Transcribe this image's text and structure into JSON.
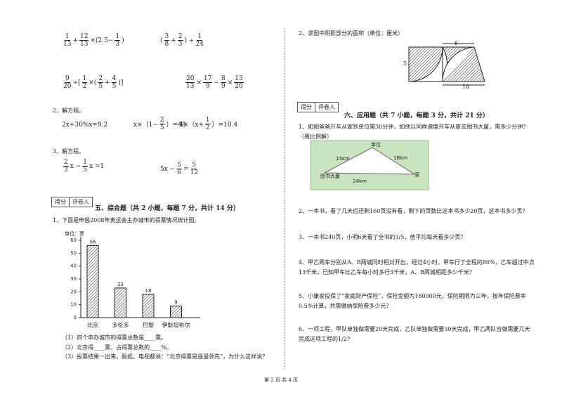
{
  "left": {
    "expressions": [
      [
        {
          "num": "1",
          "den": "13"
        },
        "+",
        {
          "num": "12",
          "den": "13"
        },
        "×(2.5−",
        {
          "num": "1",
          "den": "3"
        },
        ")"
      ],
      [
        "(",
        {
          "num": "3",
          "den": "8"
        },
        "+",
        {
          "num": "2",
          "den": "3"
        },
        ") ÷",
        {
          "num": "1",
          "den": "24"
        }
      ],
      [
        {
          "num": "9",
          "den": "20"
        },
        "÷[",
        {
          "num": "1",
          "den": "2"
        },
        "×(",
        {
          "num": "2",
          "den": "5"
        },
        "+",
        {
          "num": "4",
          "den": "5"
        },
        ")]"
      ],
      [
        {
          "num": "20",
          "den": "13"
        },
        "×",
        {
          "num": "17",
          "den": "9"
        },
        "−",
        {
          "num": "8",
          "den": "9"
        },
        "×",
        {
          "num": "13",
          "den": "20"
        }
      ]
    ],
    "section2_title": "2、解方程。",
    "equations2": [
      [
        "2x+30%x=9.2"
      ],
      [
        "x×（1−",
        {
          "num": "2",
          "den": "5"
        },
        "）=48"
      ],
      [
        "4×（x+",
        {
          "num": "1",
          "den": "2"
        },
        "）=10.4"
      ]
    ],
    "section3_title": "3、解方程。",
    "equations3": [
      [
        {
          "num": "2",
          "den": "3"
        },
        "x −",
        {
          "num": "1",
          "den": "5"
        },
        "x =1"
      ],
      [
        "5x −",
        {
          "num": "5",
          "den": "6"
        },
        "=",
        {
          "num": "5",
          "den": "12"
        }
      ]
    ],
    "score_box": [
      "得分",
      "评卷人"
    ],
    "part5_title": "五、综合题（共 2 小题，每题 7 分，共计 14 分）",
    "q1": "1、下面是申报2008年奥运会主办城市的得票情况统计图。",
    "chart": {
      "type": "bar",
      "unit": "单位：票",
      "categories": [
        "北京",
        "多伦多",
        "巴黎",
        "伊斯坦布尔"
      ],
      "values": [
        56,
        23,
        18,
        9
      ],
      "ylim": [
        0,
        60
      ],
      "yticks": [
        0,
        10,
        20,
        30,
        40,
        50,
        60
      ]
    },
    "q1_parts": [
      "（1）四个申办城市的得票总数是____票。",
      "（2）北京得____票，占得票总数的____%。",
      "（3）投票结果一出来，报纸、电视都说：“北京得票是遥遥领先”，为什么这样说？"
    ]
  },
  "right": {
    "q2": "2、求图中阴影部分的面积（单位：厘米）",
    "figure_labels": [
      "6",
      "5",
      "10"
    ],
    "score_box": [
      "得分",
      "评卷人"
    ],
    "part6_title": "六、应用题（共 7 小题，每题 3 分，共计 21 分）",
    "problems": [
      [
        "1、如图爸爸开车从家到单位需30分钟，如他以同样速度开车从家去图书大厦，需多少分钟？",
        "（用比例解）"
      ],
      [
        "2、一本书，看了几天后还剩160页没有看，剩下的页数比这本书多少20页，这本书多少页？"
      ],
      [
        "3、一本书240页，小明6天看了全书的3/5，他平均每天看多少页？"
      ],
      [
        "4、甲乙两车分别从A、B两城同时相对开出，经过4小时，甲车行了全程的80%，乙车超过中点",
        "13千米，已知甲车比乙车每小时多行3千米，A、B两城相距多少千米？"
      ],
      [
        "5、小康家投保了“家庭财产保险”，保险金额为180000元，保险期限为三年，按年保险费率",
        "0.5%计算，共需缴纳保险费多少元？"
      ],
      [
        "6、一项工程，甲队单独做需要20天完成，乙队单独做需要30天完成，甲乙两队合做需要几天",
        "完成这项工程的1/2?"
      ]
    ],
    "map_labels": [
      "单位",
      "15km",
      "18km",
      "图书大厦",
      "家",
      "24km"
    ]
  },
  "footer": "第 2 页 共 4 页"
}
